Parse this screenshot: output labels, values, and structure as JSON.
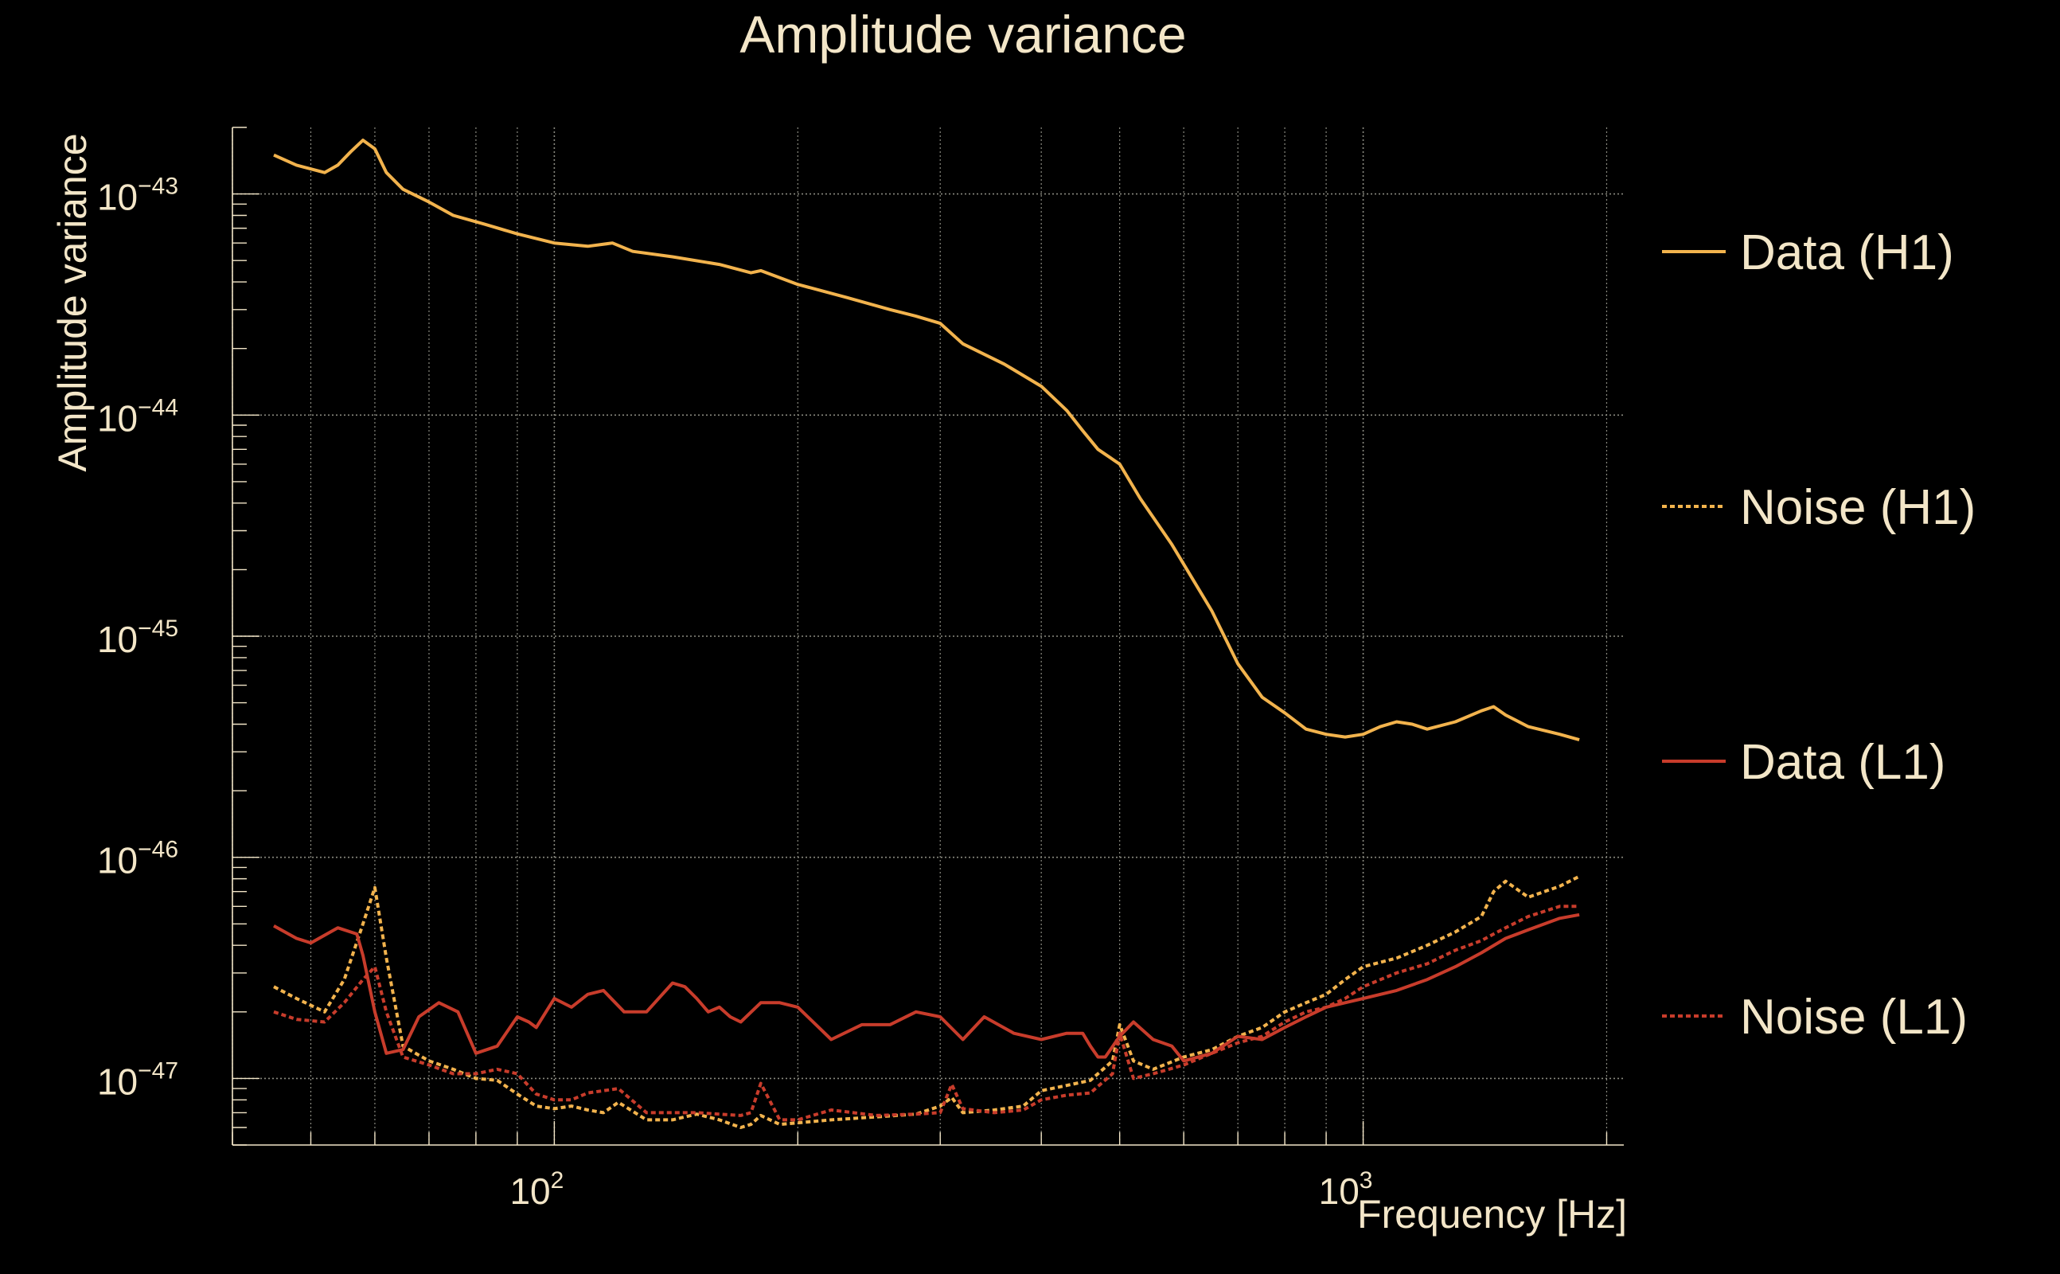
{
  "chart_data": {
    "type": "line",
    "title": "Amplitude variance",
    "xlabel": "Frequency [Hz]",
    "ylabel": "Amplitude variance",
    "xscale": "log",
    "yscale": "log",
    "xlim": [
      40,
      2100
    ],
    "ylim": [
      5e-48,
      2e-43
    ],
    "grid": true,
    "legend_position": "right",
    "x_tick_labels": [
      {
        "value": 100,
        "base": "10",
        "exp": "2"
      },
      {
        "value": 1000,
        "base": "10",
        "exp": "3"
      }
    ],
    "y_tick_labels": [
      {
        "value": 1e-43,
        "base": "10",
        "exp": "−43"
      },
      {
        "value": 1e-44,
        "base": "10",
        "exp": "−44"
      },
      {
        "value": 1e-45,
        "base": "10",
        "exp": "−45"
      },
      {
        "value": 1e-46,
        "base": "10",
        "exp": "−46"
      },
      {
        "value": 1e-47,
        "base": "10",
        "exp": "−47"
      }
    ],
    "colors": {
      "background": "#000000",
      "text": "#f3e6c8",
      "grid": "#8a8a80",
      "h1": "#f2b34d",
      "l1": "#c83c2b"
    },
    "series": [
      {
        "name": "Data (H1)",
        "color": "#f2b34d",
        "dash": "solid",
        "x": [
          45,
          48,
          52,
          54,
          56,
          58,
          60,
          62,
          65,
          70,
          75,
          82,
          90,
          100,
          110,
          118,
          125,
          140,
          160,
          175,
          180,
          200,
          230,
          260,
          280,
          300,
          320,
          360,
          400,
          430,
          450,
          470,
          500,
          530,
          580,
          650,
          700,
          750,
          800,
          850,
          900,
          950,
          1000,
          1050,
          1100,
          1150,
          1200,
          1300,
          1400,
          1450,
          1500,
          1600,
          1750,
          1850
        ],
        "y": [
          1.5e-43,
          1.35e-43,
          1.25e-43,
          1.35e-43,
          1.55e-43,
          1.75e-43,
          1.6e-43,
          1.25e-43,
          1.05e-43,
          9.2e-44,
          8e-44,
          7.3e-44,
          6.6e-44,
          6e-44,
          5.8e-44,
          6e-44,
          5.5e-44,
          5.2e-44,
          4.8e-44,
          4.4e-44,
          4.5e-44,
          3.9e-44,
          3.4e-44,
          3e-44,
          2.8e-44,
          2.6e-44,
          2.1e-44,
          1.7e-44,
          1.35e-44,
          1.05e-44,
          8.5e-45,
          7e-45,
          6e-45,
          4.2e-45,
          2.6e-45,
          1.3e-45,
          7.5e-46,
          5.3e-46,
          4.5e-46,
          3.8e-46,
          3.6e-46,
          3.5e-46,
          3.6e-46,
          3.9e-46,
          4.1e-46,
          4e-46,
          3.8e-46,
          4.1e-46,
          4.6e-46,
          4.8e-46,
          4.4e-46,
          3.9e-46,
          3.6e-46,
          3.4e-46
        ]
      },
      {
        "name": "Noise (H1)",
        "color": "#f2b34d",
        "dash": "dotted",
        "x": [
          45,
          48,
          52,
          55,
          58,
          60,
          62,
          65,
          70,
          75,
          80,
          85,
          90,
          95,
          100,
          105,
          110,
          115,
          120,
          130,
          140,
          150,
          160,
          170,
          175,
          180,
          190,
          200,
          220,
          250,
          280,
          300,
          310,
          320,
          350,
          380,
          400,
          430,
          460,
          490,
          500,
          520,
          550,
          600,
          650,
          700,
          750,
          800,
          850,
          900,
          950,
          1000,
          1100,
          1200,
          1300,
          1400,
          1450,
          1500,
          1600,
          1750,
          1850
        ],
        "y": [
          2.6e-47,
          2.3e-47,
          2e-47,
          2.8e-47,
          5e-47,
          7.3e-47,
          3.5e-47,
          1.4e-47,
          1.2e-47,
          1.1e-47,
          1e-47,
          9.8e-48,
          8.5e-48,
          7.5e-48,
          7.3e-48,
          7.5e-48,
          7.2e-48,
          7e-48,
          7.8e-48,
          6.5e-48,
          6.5e-48,
          6.9e-48,
          6.5e-48,
          6e-48,
          6.2e-48,
          6.8e-48,
          6.2e-48,
          6.3e-48,
          6.5e-48,
          6.7e-48,
          6.9e-48,
          7.5e-48,
          8.2e-48,
          7e-48,
          7.2e-48,
          7.5e-48,
          8.8e-48,
          9.3e-48,
          9.8e-48,
          1.2e-47,
          1.75e-47,
          1.2e-47,
          1.1e-47,
          1.25e-47,
          1.35e-47,
          1.55e-47,
          1.7e-47,
          2e-47,
          2.2e-47,
          2.4e-47,
          2.8e-47,
          3.2e-47,
          3.5e-47,
          4e-47,
          4.6e-47,
          5.4e-47,
          7e-47,
          7.8e-47,
          6.6e-47,
          7.4e-47,
          8.2e-47
        ]
      },
      {
        "name": "Data (L1)",
        "color": "#c83c2b",
        "dash": "solid",
        "x": [
          45,
          48,
          50,
          54,
          57,
          58,
          60,
          62,
          65,
          68,
          72,
          76,
          80,
          85,
          90,
          93,
          95,
          100,
          105,
          110,
          115,
          122,
          130,
          140,
          145,
          150,
          155,
          160,
          165,
          170,
          180,
          190,
          200,
          220,
          240,
          260,
          280,
          300,
          320,
          340,
          370,
          400,
          430,
          450,
          460,
          470,
          480,
          500,
          520,
          550,
          580,
          600,
          650,
          700,
          750,
          800,
          850,
          900,
          950,
          1000,
          1100,
          1200,
          1300,
          1400,
          1500,
          1600,
          1750,
          1850
        ],
        "y": [
          4.9e-47,
          4.3e-47,
          4.1e-47,
          4.8e-47,
          4.5e-47,
          3.6e-47,
          2e-47,
          1.3e-47,
          1.35e-47,
          1.9e-47,
          2.2e-47,
          2e-47,
          1.3e-47,
          1.4e-47,
          1.9e-47,
          1.8e-47,
          1.7e-47,
          2.3e-47,
          2.1e-47,
          2.4e-47,
          2.5e-47,
          2e-47,
          2e-47,
          2.7e-47,
          2.6e-47,
          2.3e-47,
          2e-47,
          2.1e-47,
          1.9e-47,
          1.8e-47,
          2.2e-47,
          2.2e-47,
          2.1e-47,
          1.5e-47,
          1.75e-47,
          1.75e-47,
          2e-47,
          1.9e-47,
          1.5e-47,
          1.9e-47,
          1.6e-47,
          1.5e-47,
          1.6e-47,
          1.6e-47,
          1.4e-47,
          1.25e-47,
          1.25e-47,
          1.55e-47,
          1.8e-47,
          1.5e-47,
          1.4e-47,
          1.2e-47,
          1.3e-47,
          1.55e-47,
          1.5e-47,
          1.7e-47,
          1.9e-47,
          2.1e-47,
          2.2e-47,
          2.3e-47,
          2.5e-47,
          2.8e-47,
          3.2e-47,
          3.7e-47,
          4.3e-47,
          4.7e-47,
          5.3e-47,
          5.5e-47
        ]
      },
      {
        "name": "Noise (L1)",
        "color": "#c83c2b",
        "dash": "dotted",
        "x": [
          45,
          48,
          52,
          55,
          58,
          60,
          62,
          65,
          70,
          75,
          80,
          85,
          90,
          95,
          100,
          105,
          110,
          115,
          120,
          130,
          140,
          150,
          160,
          170,
          175,
          180,
          190,
          200,
          220,
          250,
          280,
          300,
          310,
          320,
          350,
          380,
          400,
          430,
          460,
          490,
          500,
          520,
          550,
          600,
          650,
          700,
          750,
          800,
          850,
          900,
          950,
          1000,
          1100,
          1200,
          1300,
          1400,
          1450,
          1500,
          1600,
          1750,
          1850
        ],
        "y": [
          2e-47,
          1.85e-47,
          1.8e-47,
          2.2e-47,
          2.8e-47,
          3.2e-47,
          2e-47,
          1.25e-47,
          1.15e-47,
          1.05e-47,
          1.05e-47,
          1.1e-47,
          1.05e-47,
          8.5e-48,
          8e-48,
          8e-48,
          8.6e-48,
          8.8e-48,
          9e-48,
          7e-48,
          7e-48,
          7e-48,
          6.9e-48,
          6.8e-48,
          7e-48,
          9.5e-48,
          6.5e-48,
          6.5e-48,
          7.2e-48,
          6.8e-48,
          6.9e-48,
          7e-48,
          9.4e-48,
          7.3e-48,
          7e-48,
          7.2e-48,
          8e-48,
          8.4e-48,
          8.6e-48,
          1.05e-47,
          1.6e-47,
          1e-47,
          1.05e-47,
          1.15e-47,
          1.3e-47,
          1.45e-47,
          1.55e-47,
          1.8e-47,
          2e-47,
          2.1e-47,
          2.3e-47,
          2.6e-47,
          3e-47,
          3.3e-47,
          3.8e-47,
          4.2e-47,
          4.5e-47,
          4.8e-47,
          5.4e-47,
          6e-47,
          6e-47
        ]
      }
    ]
  }
}
